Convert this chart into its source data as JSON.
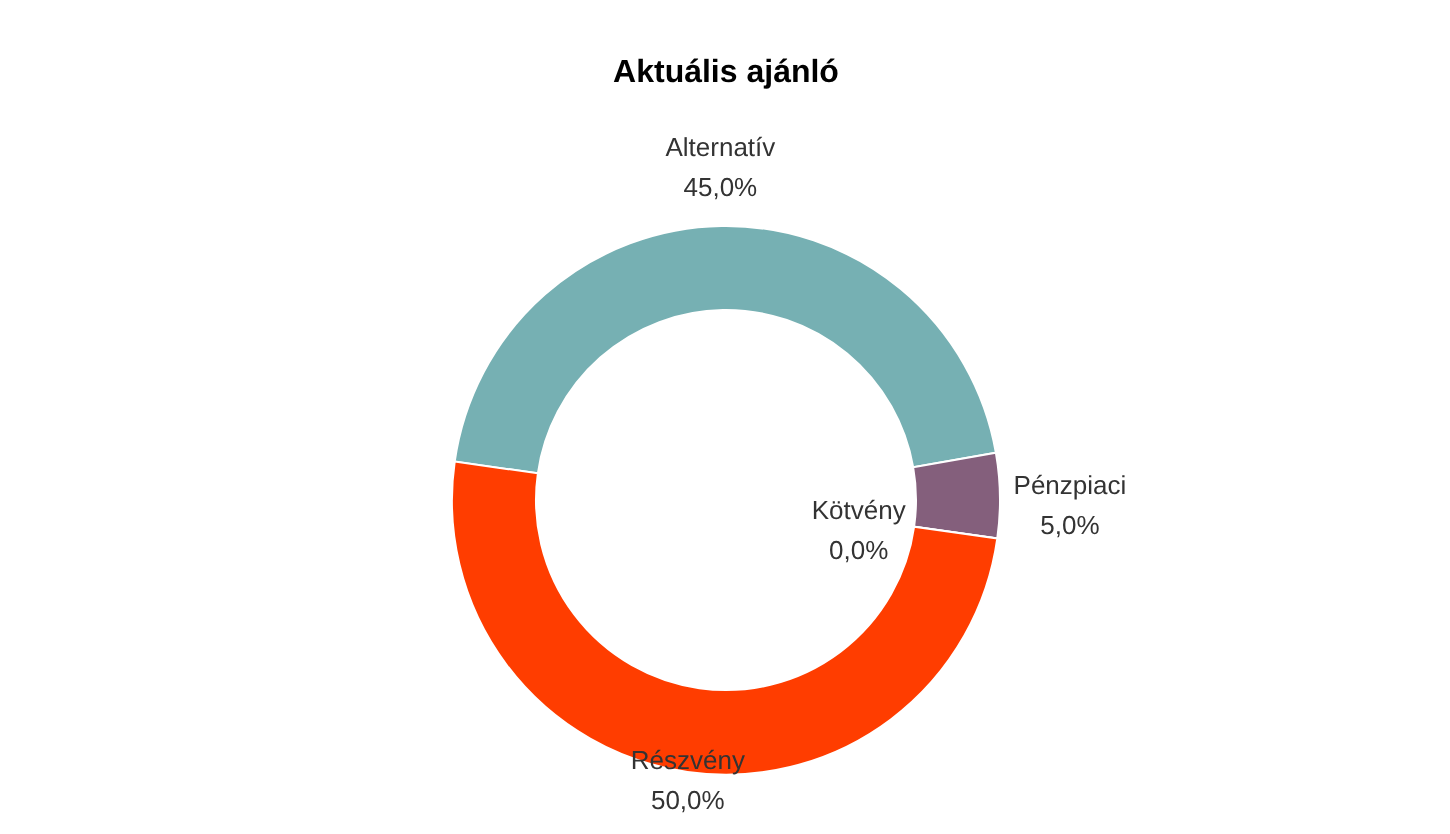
{
  "chart_data": {
    "type": "donut",
    "title": "Aktuális ajánló",
    "categories": [
      "Alternatív",
      "Pénzpiaci",
      "Kötvény",
      "Részvény"
    ],
    "values": [
      45,
      5,
      0,
      50
    ],
    "colors": [
      "#76b0b3",
      "#845f7c",
      "#5b9bd5",
      "#ff3d00"
    ],
    "value_labels": [
      "45,0%",
      "5,0%",
      "0,0%",
      "50,0%"
    ],
    "legend": false
  }
}
